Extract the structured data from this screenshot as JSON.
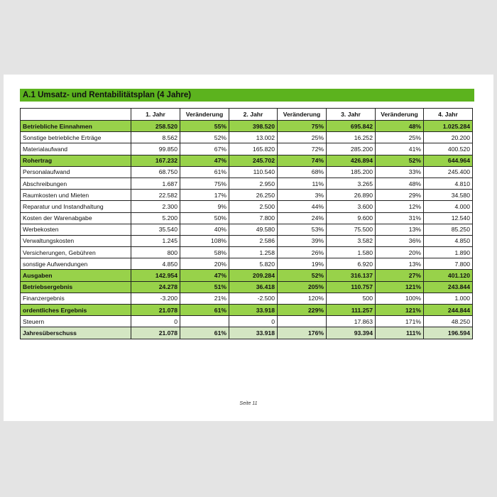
{
  "title": "A.1 Umsatz- und Rentabilitätsplan (4 Jahre)",
  "table": {
    "header": [
      null,
      "1. Jahr",
      "Veränderung",
      "2. Jahr",
      "Veränderung",
      "3. Jahr",
      "Veränderung",
      "4. Jahr"
    ],
    "rows": [
      {
        "style": "total",
        "cells": [
          "Betriebliche Einnahmen",
          "258.520",
          "55%",
          "398.520",
          "75%",
          "695.842",
          "48%",
          "1.025.284"
        ]
      },
      {
        "style": "plain",
        "cells": [
          "Sonstige betriebliche Erträge",
          "8.562",
          "52%",
          "13.002",
          "25%",
          "16.252",
          "25%",
          "20.200"
        ]
      },
      {
        "style": "plain",
        "cells": [
          "Materialaufwand",
          "99.850",
          "67%",
          "165.820",
          "72%",
          "285.200",
          "41%",
          "400.520"
        ]
      },
      {
        "style": "total",
        "cells": [
          "Rohertrag",
          "167.232",
          "47%",
          "245.702",
          "74%",
          "426.894",
          "52%",
          "644.964"
        ]
      },
      {
        "style": "plain",
        "cells": [
          "Personalaufwand",
          "68.750",
          "61%",
          "110.540",
          "68%",
          "185.200",
          "33%",
          "245.400"
        ]
      },
      {
        "style": "plain",
        "cells": [
          "Abschreibungen",
          "1.687",
          "75%",
          "2.950",
          "11%",
          "3.265",
          "48%",
          "4.810"
        ]
      },
      {
        "style": "plain",
        "cells": [
          "Raumkosten und Mieten",
          "22.582",
          "17%",
          "26.250",
          "3%",
          "26.890",
          "29%",
          "34.580"
        ]
      },
      {
        "style": "plain",
        "cells": [
          "Reparatur und Instandhaltung",
          "2.300",
          "9%",
          "2.500",
          "44%",
          "3.600",
          "12%",
          "4.000"
        ]
      },
      {
        "style": "plain",
        "cells": [
          "Kosten der Warenabgabe",
          "5.200",
          "50%",
          "7.800",
          "24%",
          "9.600",
          "31%",
          "12.540"
        ]
      },
      {
        "style": "plain",
        "cells": [
          "Werbekosten",
          "35.540",
          "40%",
          "49.580",
          "53%",
          "75.500",
          "13%",
          "85.250"
        ]
      },
      {
        "style": "plain",
        "cells": [
          "Verwaltungskosten",
          "1.245",
          "108%",
          "2.586",
          "39%",
          "3.582",
          "36%",
          "4.850"
        ]
      },
      {
        "style": "plain",
        "cells": [
          "Versicherungen, Gebühren",
          "800",
          "58%",
          "1.258",
          "26%",
          "1.580",
          "20%",
          "1.890"
        ]
      },
      {
        "style": "plain",
        "cells": [
          "sonstige Aufwendungen",
          "4.850",
          "20%",
          "5.820",
          "19%",
          "6.920",
          "13%",
          "7.800"
        ]
      },
      {
        "style": "total",
        "cells": [
          "Ausgaben",
          "142.954",
          "47%",
          "209.284",
          "52%",
          "316.137",
          "27%",
          "401.120"
        ]
      },
      {
        "style": "total",
        "cells": [
          "Betriebsergebnis",
          "24.278",
          "51%",
          "36.418",
          "205%",
          "110.757",
          "121%",
          "243.844"
        ]
      },
      {
        "style": "plain",
        "cells": [
          "Finanzergebnis",
          "-3.200",
          "21%",
          "-2.500",
          "120%",
          "500",
          "100%",
          "1.000"
        ]
      },
      {
        "style": "total",
        "cells": [
          "ordentliches Ergebnis",
          "21.078",
          "61%",
          "33.918",
          "229%",
          "111.257",
          "121%",
          "244.844"
        ]
      },
      {
        "style": "plain",
        "cells": [
          "Steuern",
          "0",
          null,
          "0",
          null,
          "17.863",
          "171%",
          "48.250"
        ]
      },
      {
        "style": "result",
        "cells": [
          "Jahresüberschuss",
          "21.078",
          "61%",
          "33.918",
          "176%",
          "93.394",
          "111%",
          "196.594"
        ]
      }
    ]
  },
  "footer": "Seite 11"
}
